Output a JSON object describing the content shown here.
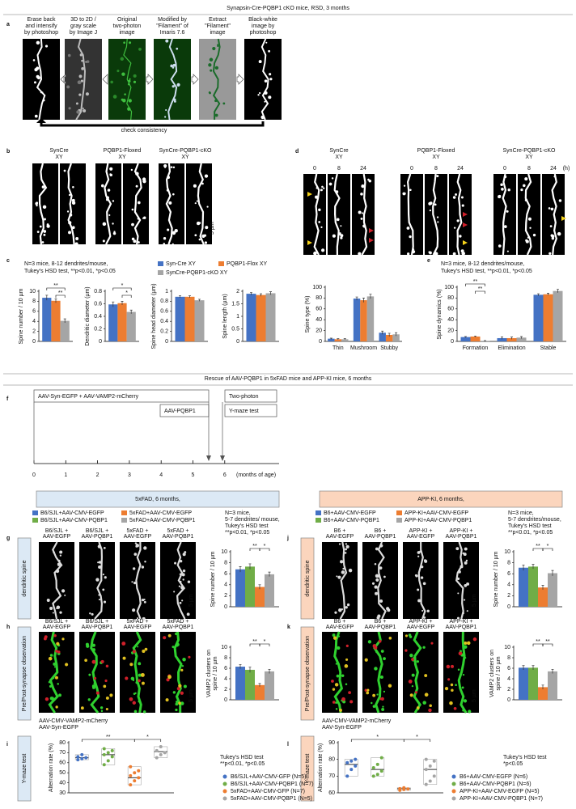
{
  "header": {
    "title": "Synapsin-Cre-PQBP1 cKO mice, RSD, 3 months"
  },
  "section2": {
    "title": "Rescue of AAV-PQBP1 in 5xFAD mice and APP-KI mice, 6 months"
  },
  "panel_labels": [
    "a",
    "b",
    "c",
    "d",
    "e",
    "f",
    "g",
    "h",
    "i",
    "j",
    "k",
    "l"
  ],
  "panel_a": {
    "steps": [
      [
        "Erase back",
        "and intensify",
        "by photoshop"
      ],
      [
        "3D to 2D /",
        "gray scale",
        "by Image J"
      ],
      [
        "Original",
        "two-photon",
        "image"
      ],
      [
        "Modified by",
        "\"Filament\" of",
        "Imaris 7.6"
      ],
      [
        "Extract",
        "\"Filament\"",
        "image"
      ],
      [
        "Black-white",
        "image by",
        "photoshop"
      ]
    ],
    "note": "check consistency"
  },
  "panel_b": {
    "groups": [
      [
        "SynCre",
        "XY"
      ],
      [
        "PQBP1-Floxed",
        "XY"
      ],
      [
        "SynCre-PQBP1-cKO",
        "XY"
      ]
    ],
    "scale": "5 µm"
  },
  "panel_d": {
    "groups": [
      [
        "SynCre",
        "XY"
      ],
      [
        "PQBP1-Floxed",
        "XY"
      ],
      [
        "SynCre-PQBP1-cKO",
        "XY"
      ]
    ],
    "times": [
      "0",
      "8",
      "24"
    ],
    "unit": "(h)"
  },
  "panel_c": {
    "note": [
      "N=3 mice, 8-12 dendrites/mouse,",
      "Tukey's HSD test, **p<0.01, *p<0.05"
    ]
  },
  "panel_e": {
    "note": [
      "N=3 mice, 8-12 dendrites/mouse,",
      "Tukey's HSD test, **p<0.01, *p<0.05"
    ]
  },
  "panel_f": {
    "bars": [
      "AAV-Syn-EGFP + AAV-VAMP2-mCherry",
      "AAV-PQBP1",
      "Two-photon",
      "Y-maze test"
    ],
    "ticks": [
      0,
      1,
      2,
      3,
      4,
      5,
      6
    ],
    "unit": "(months of age)"
  },
  "panel_5xfad": {
    "title": "5xFAD, 6 months,",
    "note": [
      "N=3 mice,",
      "5-7 dendrites/ mouse,",
      "Tukey's HSD test",
      "**p<0.01, *p<0.05"
    ],
    "row_g": "dendritic spine",
    "row_h": "Pre/Post-synapse observation",
    "row_i": "Y-maze test",
    "images_g": [
      [
        "B6/SJL +",
        "AAV-EGFP"
      ],
      [
        "B6/SJL +",
        "AAV-PQBP1"
      ],
      [
        "5xFAD +",
        "AAV-EGFP"
      ],
      [
        "5xFAD +",
        "AAV-PQBP1"
      ]
    ],
    "images_h": [
      [
        "B6/SJL +",
        "AAV-EGFP"
      ],
      [
        "B6/SJL +",
        "AAV-PQBP1"
      ],
      [
        "5xFAD +",
        "AAV-EGFP"
      ],
      [
        "5xFAD +",
        "AAV-PQBP1"
      ]
    ],
    "captions": [
      "AAV-CMV-VAMP2-mCherry",
      "AAV-Syn-EGFP"
    ],
    "scale": "5 µm",
    "stat": [
      "Tukey's HSD test",
      "**p<0.01, *p<0.05"
    ]
  },
  "panel_appki": {
    "title": "APP-KI, 6 months,",
    "note": [
      "N=3 mice,",
      "5-7 dendrites/mouse,",
      "Tukey's HSD test",
      "**p<0.01, *p<0.05"
    ],
    "row_j": "dendritic spine",
    "row_k": "Pre/Post-synapse observation",
    "row_l": "Y-maze test",
    "images_j": [
      [
        "B6 +",
        "AAV-EGFP"
      ],
      [
        "B6 +",
        "AAV-PQBP1"
      ],
      [
        "APP-KI +",
        "AAV-EGFP"
      ],
      [
        "APP-KI +",
        "AAV-PQBP1"
      ]
    ],
    "images_k": [
      [
        "B6 +",
        "AAV-EGFP"
      ],
      [
        "B6 +",
        "AAV-PQBP1"
      ],
      [
        "APP-KI +",
        "AAV-EGFP"
      ],
      [
        "APP-KI +",
        "AAV-PQBP1"
      ]
    ],
    "captions": [
      "AAV-CMV-VAMP2-mCherry",
      "AAV-Syn-EGFP"
    ],
    "scale": "5 µm",
    "stat": [
      "Tukey's HSD test",
      "*p<0.05"
    ]
  },
  "chart_data": [
    {
      "type": "bar",
      "ylabel": "Spine number / 10 µm",
      "categories": [
        null
      ],
      "series": [
        {
          "name": "Syn-Cre XY",
          "color": "#4472c4",
          "values": [
            8.7
          ],
          "errors": [
            0.5
          ]
        },
        {
          "name": "PQBP1-Flox XY",
          "color": "#ed7d31",
          "values": [
            8.1
          ],
          "errors": [
            0.4
          ]
        },
        {
          "name": "SynCre-PQBP1-cKO XY",
          "color": "#a5a5a5",
          "values": [
            4.1
          ],
          "errors": [
            0.4
          ]
        }
      ],
      "ylim": [
        0,
        10
      ],
      "yticks": [
        0,
        2,
        4,
        6,
        8,
        10
      ],
      "annotations": [
        "**",
        "**"
      ]
    },
    {
      "type": "bar",
      "ylabel": "Dendritic  diameter (µm)",
      "categories": [
        null
      ],
      "series": [
        {
          "color": "#4472c4",
          "values": [
            0.59
          ],
          "errors": [
            0.04
          ]
        },
        {
          "color": "#ed7d31",
          "values": [
            0.61
          ],
          "errors": [
            0.03
          ]
        },
        {
          "color": "#a5a5a5",
          "values": [
            0.47
          ],
          "errors": [
            0.03
          ]
        }
      ],
      "ylim": [
        0,
        0.8
      ],
      "yticks": [
        0,
        0.2,
        0.4,
        0.6,
        0.8
      ],
      "annotations": [
        "*",
        "*"
      ]
    },
    {
      "type": "bar",
      "ylabel": "Spine head diameter (µm)",
      "categories": [
        null
      ],
      "series": [
        {
          "color": "#4472c4",
          "values": [
            0.89
          ],
          "errors": [
            0.02
          ]
        },
        {
          "color": "#ed7d31",
          "values": [
            0.89
          ],
          "errors": [
            0.02
          ]
        },
        {
          "color": "#a5a5a5",
          "values": [
            0.82
          ],
          "errors": [
            0.02
          ]
        }
      ],
      "ylim": [
        0,
        1
      ],
      "yticks": [
        0,
        0.2,
        0.4,
        0.6,
        0.8,
        1
      ]
    },
    {
      "type": "bar",
      "ylabel": "Spine length (µm)",
      "categories": [
        null
      ],
      "series": [
        {
          "color": "#4472c4",
          "values": [
            1.9
          ],
          "errors": [
            0.05
          ]
        },
        {
          "color": "#ed7d31",
          "values": [
            1.85
          ],
          "errors": [
            0.05
          ]
        },
        {
          "color": "#a5a5a5",
          "values": [
            1.92
          ],
          "errors": [
            0.06
          ]
        }
      ],
      "ylim": [
        0,
        2
      ],
      "yticks": [
        0,
        0.5,
        1,
        1.5,
        2
      ]
    },
    {
      "type": "bar",
      "ylabel": "Spine type (%)",
      "categories": [
        "Thin",
        "Mushroom",
        "Stubby"
      ],
      "series": [
        {
          "color": "#4472c4",
          "values": [
            5,
            79,
            16
          ],
          "errors": [
            1,
            3,
            3
          ]
        },
        {
          "color": "#ed7d31",
          "values": [
            4,
            76,
            12
          ],
          "errors": [
            1,
            4,
            3
          ]
        },
        {
          "color": "#a5a5a5",
          "values": [
            4,
            83,
            13
          ],
          "errors": [
            1,
            4,
            3
          ]
        }
      ],
      "ylim": [
        0,
        100
      ],
      "yticks": [
        0,
        20,
        40,
        60,
        80,
        100
      ]
    },
    {
      "type": "bar",
      "ylabel": "Spine dynamics (%)",
      "categories": [
        "Formation",
        "Elimination",
        "Stable"
      ],
      "series": [
        {
          "color": "#4472c4",
          "values": [
            8,
            6,
            86
          ],
          "errors": [
            1,
            2,
            2
          ]
        },
        {
          "color": "#ed7d31",
          "values": [
            9,
            6,
            87
          ],
          "errors": [
            1,
            2,
            2
          ]
        },
        {
          "color": "#a5a5a5",
          "values": [
            1,
            7,
            93
          ],
          "errors": [
            0.5,
            2,
            3
          ]
        }
      ],
      "ylim": [
        0,
        100
      ],
      "yticks": [
        0,
        20,
        40,
        60,
        80,
        100
      ],
      "annotations": [
        "**",
        "**"
      ]
    },
    {
      "type": "bar",
      "ylabel": "Spine number / 10 µm",
      "categories": [
        null
      ],
      "series": [
        {
          "name": "B6/SJL+AAV-CMV-EGFP",
          "color": "#4472c4",
          "values": [
            6.8
          ],
          "errors": [
            0.5
          ]
        },
        {
          "name": "B6/SJL+AAV-CMV-PQBP1",
          "color": "#70ad47",
          "values": [
            7.3
          ],
          "errors": [
            0.5
          ]
        },
        {
          "name": "5xFAD+AAV-CMV-EGFP",
          "color": "#ed7d31",
          "values": [
            3.6
          ],
          "errors": [
            0.4
          ]
        },
        {
          "name": "5xFAD+AAV-CMV-PQBP1",
          "color": "#a5a5a5",
          "values": [
            5.9
          ],
          "errors": [
            0.4
          ]
        }
      ],
      "ylim": [
        0,
        10
      ],
      "yticks": [
        0,
        2,
        4,
        6,
        8,
        10
      ],
      "annotations": [
        "**",
        "*"
      ]
    },
    {
      "type": "bar",
      "ylabel": [
        "VAMP2 clusters on",
        "spine / 10 µm"
      ],
      "categories": [
        null
      ],
      "series": [
        {
          "color": "#4472c4",
          "values": [
            6.3
          ],
          "errors": [
            0.4
          ]
        },
        {
          "color": "#70ad47",
          "values": [
            5.7
          ],
          "errors": [
            0.5
          ]
        },
        {
          "color": "#ed7d31",
          "values": [
            2.8
          ],
          "errors": [
            0.3
          ]
        },
        {
          "color": "#a5a5a5",
          "values": [
            5.4
          ],
          "errors": [
            0.4
          ]
        }
      ],
      "ylim": [
        0,
        10
      ],
      "yticks": [
        0,
        2,
        4,
        6,
        8,
        10
      ],
      "annotations": [
        "**",
        "*"
      ]
    },
    {
      "type": "strip",
      "ylabel": "Alternation rate (%)",
      "series": [
        {
          "name": "B6/SJL+AAV-CMV-GFP (N=5)",
          "color": "#4472c4",
          "values": [
            63,
            64,
            65,
            66,
            68
          ],
          "median": 65
        },
        {
          "name": "B6/SJL+AAV-CMV-PQBP1 (N=7)",
          "color": "#70ad47",
          "values": [
            58,
            62,
            66,
            68,
            70,
            72,
            74
          ],
          "median": 68
        },
        {
          "name": "5xFAD+AAV-CMV-GFP (N=7)",
          "color": "#ed7d31",
          "values": [
            38,
            42,
            45,
            47,
            50,
            52,
            56
          ],
          "median": 45
        },
        {
          "name": "5xFAD+AAV-CMV-PQBP1 (N=5)",
          "color": "#a5a5a5",
          "values": [
            65,
            68,
            70,
            72,
            76
          ],
          "median": 71
        }
      ],
      "ylim": [
        30,
        80
      ],
      "yticks": [
        30,
        40,
        50,
        60,
        70,
        80
      ],
      "annotations": [
        "**",
        "*"
      ]
    },
    {
      "type": "bar",
      "ylabel": "Spine number / 10 µm",
      "categories": [
        null
      ],
      "series": [
        {
          "name": "B6+AAV-CMV-EGFP",
          "color": "#4472c4",
          "values": [
            7.1
          ],
          "errors": [
            0.5
          ]
        },
        {
          "name": "B6+AAV-CMV-PQBP1",
          "color": "#70ad47",
          "values": [
            7.3
          ],
          "errors": [
            0.4
          ]
        },
        {
          "name": "APP-KI+AAV-CMV-EGFP",
          "color": "#ed7d31",
          "values": [
            3.5
          ],
          "errors": [
            0.4
          ]
        },
        {
          "name": "APP-KI+AAV-CMV-PQBP1",
          "color": "#a5a5a5",
          "values": [
            6.1
          ],
          "errors": [
            0.5
          ]
        }
      ],
      "ylim": [
        0,
        10
      ],
      "yticks": [
        0,
        2,
        4,
        6,
        8,
        10
      ],
      "annotations": [
        "**",
        "*"
      ]
    },
    {
      "type": "bar",
      "ylabel": [
        "VAMP2 clusters on",
        "spine / 10 µm"
      ],
      "categories": [
        null
      ],
      "series": [
        {
          "color": "#4472c4",
          "values": [
            6.1
          ],
          "errors": [
            0.4
          ]
        },
        {
          "color": "#70ad47",
          "values": [
            6.1
          ],
          "errors": [
            0.4
          ]
        },
        {
          "color": "#ed7d31",
          "values": [
            2.4
          ],
          "errors": [
            0.4
          ]
        },
        {
          "color": "#a5a5a5",
          "values": [
            5.4
          ],
          "errors": [
            0.4
          ]
        }
      ],
      "ylim": [
        0,
        10
      ],
      "yticks": [
        0,
        2,
        4,
        6,
        8,
        10
      ],
      "annotations": [
        "**",
        "**"
      ]
    },
    {
      "type": "strip",
      "ylabel": "Alternation rate (%)",
      "series": [
        {
          "name": "B6+AAV-CMV-EGFP (N=6)",
          "color": "#4472c4",
          "values": [
            70,
            74,
            76,
            78,
            79,
            80
          ],
          "median": 77
        },
        {
          "name": "B6+AAV-CMV-PQBP1 (N=6)",
          "color": "#70ad47",
          "values": [
            70,
            71,
            73,
            75,
            77,
            81
          ],
          "median": 74
        },
        {
          "name": "APP-KI+AAV-CMV-EGFP (N=5)",
          "color": "#ed7d31",
          "values": [
            61.5,
            62,
            62.3,
            62.5,
            63
          ],
          "median": 62.5
        },
        {
          "name": "APP-KI+AAV-CMV-PQBP1 (N=7)",
          "color": "#a5a5a5",
          "values": [
            65,
            67,
            70,
            74,
            76,
            79,
            80
          ],
          "median": 74
        }
      ],
      "ylim": [
        60,
        90
      ],
      "yticks": [
        60,
        70,
        80,
        90
      ],
      "annotations": [
        "*",
        "*"
      ]
    }
  ]
}
